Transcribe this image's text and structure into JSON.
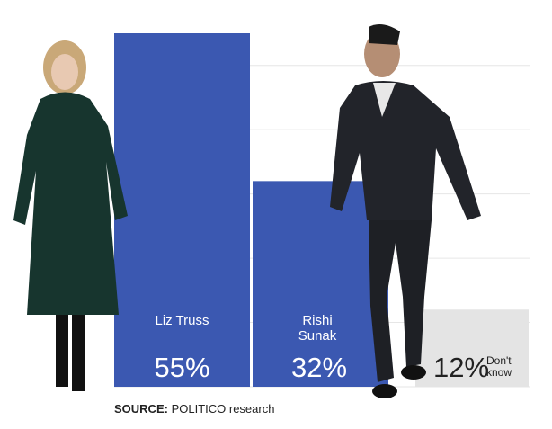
{
  "chart_data": {
    "type": "bar",
    "categories": [
      "Liz Truss",
      "Rishi Sunak",
      "Don't know"
    ],
    "values": [
      55,
      32,
      12
    ],
    "value_labels": [
      "55%",
      "32%",
      "12%"
    ],
    "colors": [
      "#3b58b1",
      "#3b58b1",
      "#e4e4e4"
    ],
    "ylim": [
      0,
      55
    ],
    "yticks": [
      0,
      10,
      20,
      30,
      40,
      50
    ],
    "grid": true,
    "source_label": "SOURCE:",
    "source": "POLITICO research"
  }
}
